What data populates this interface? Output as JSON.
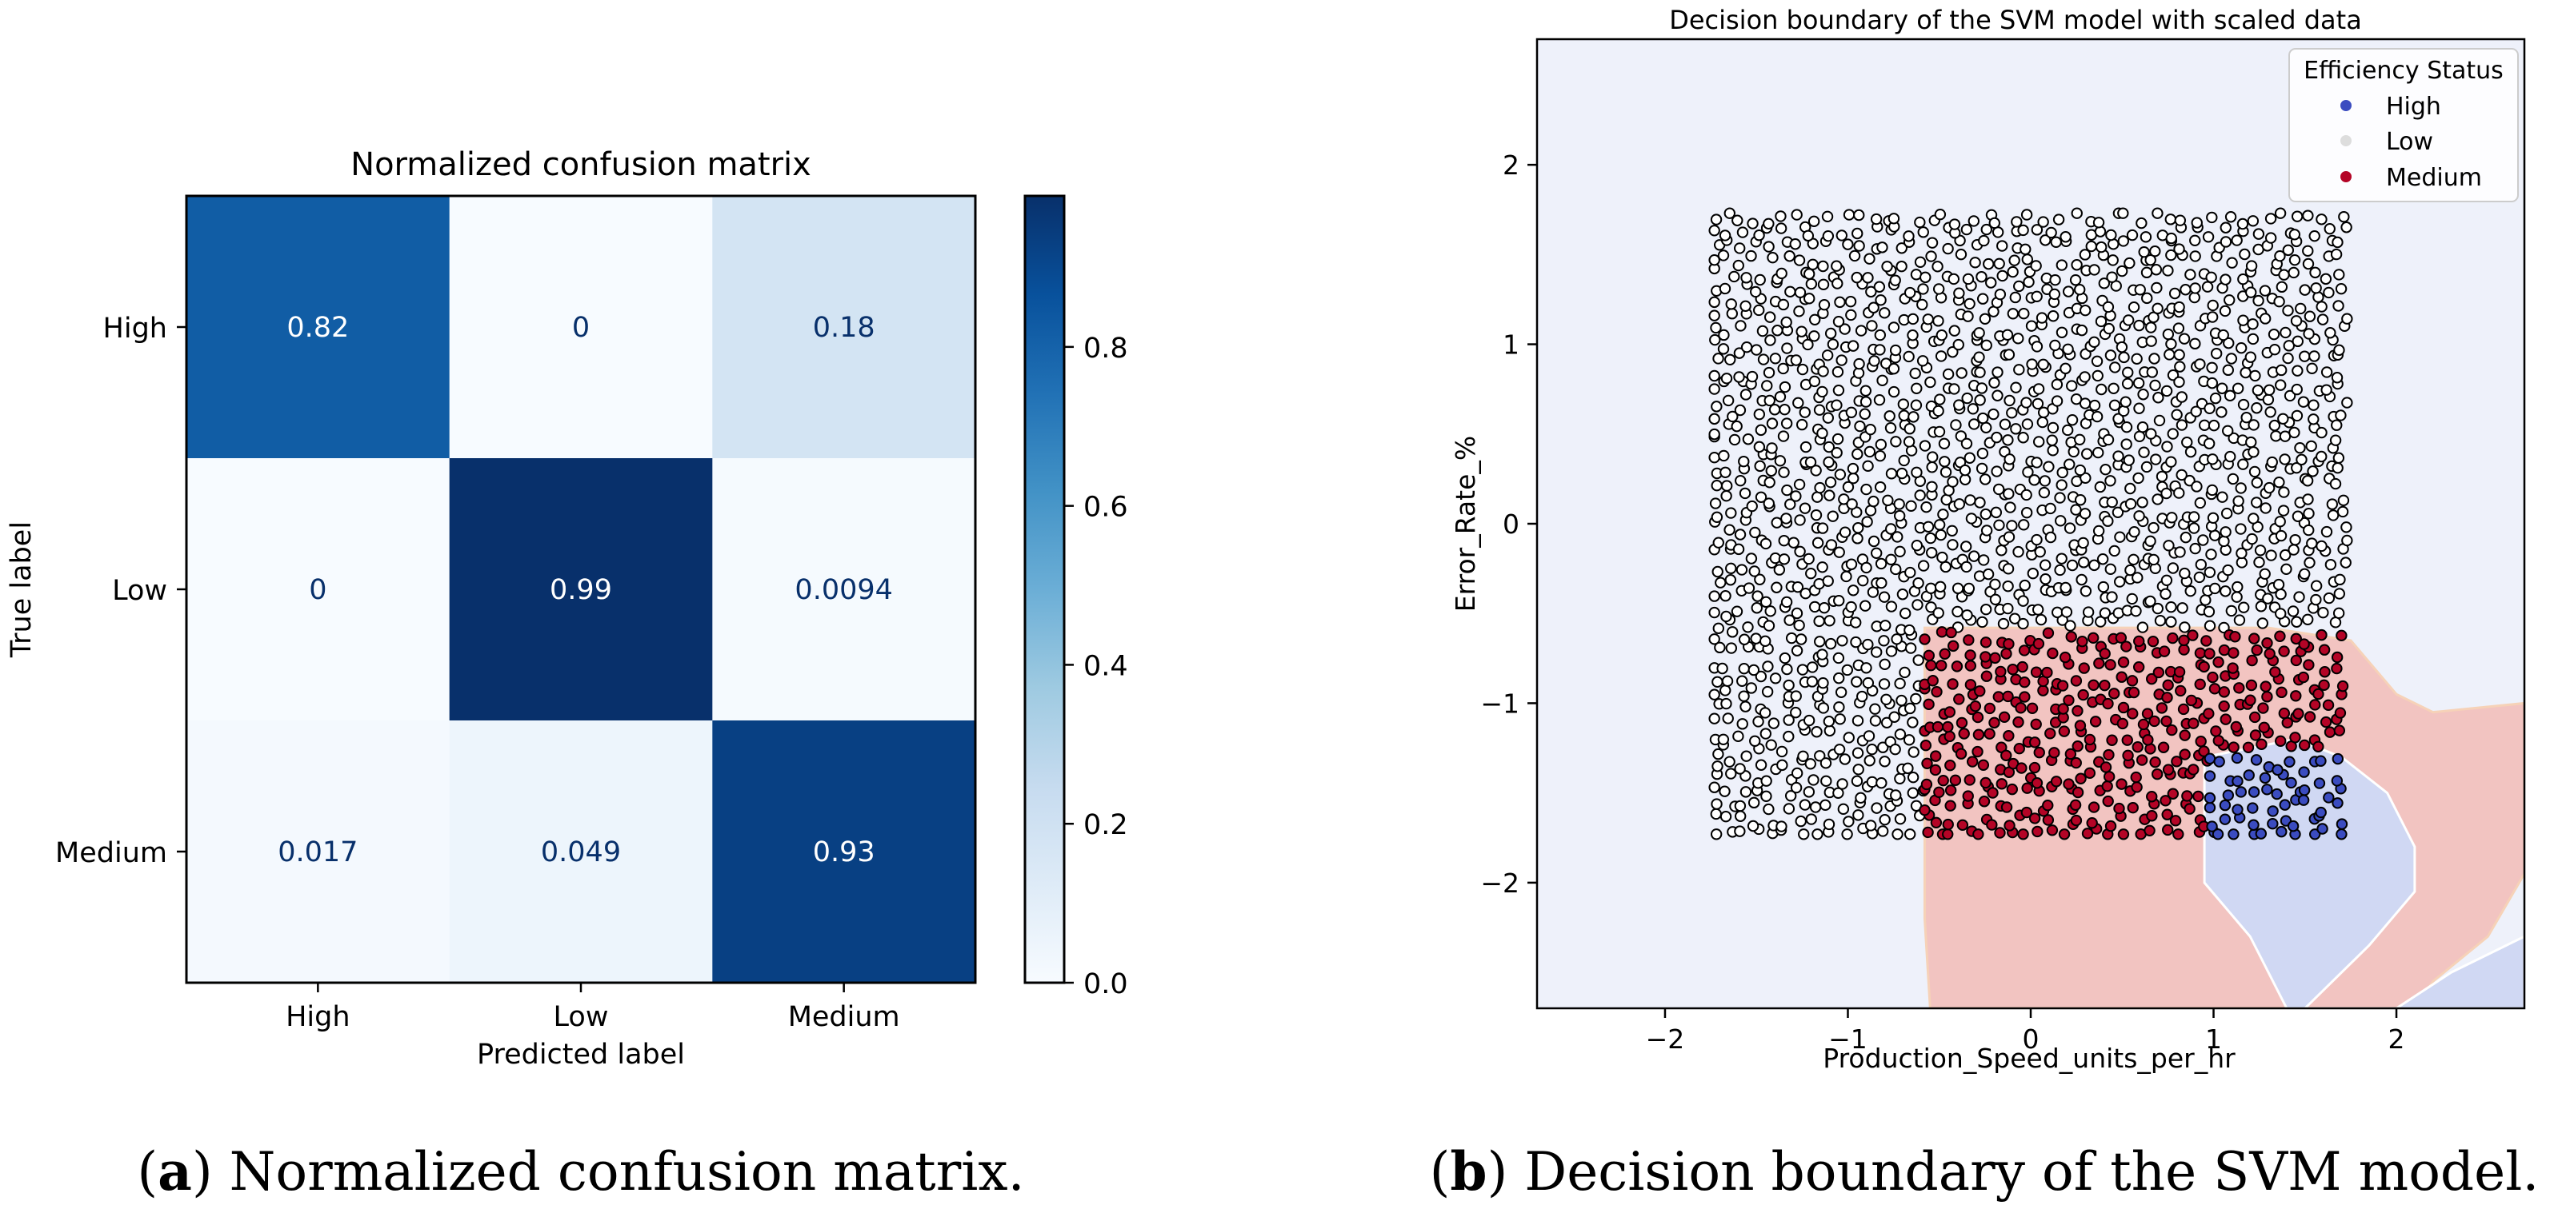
{
  "chart_data": [
    {
      "type": "heatmap",
      "title": "Normalized confusion matrix",
      "xlabel": "Predicted label",
      "ylabel": "True label",
      "x_categories": [
        "High",
        "Low",
        "Medium"
      ],
      "y_categories": [
        "High",
        "Low",
        "Medium"
      ],
      "values": [
        [
          0.82,
          0,
          0.18
        ],
        [
          0,
          0.99,
          0.0094
        ],
        [
          0.017,
          0.049,
          0.93
        ]
      ],
      "value_labels": [
        [
          "0.82",
          "0",
          "0.18"
        ],
        [
          "0",
          "0.99",
          "0.0094"
        ],
        [
          "0.017",
          "0.049",
          "0.93"
        ]
      ],
      "colormap": "Blues",
      "colorbar": {
        "range": [
          0.0,
          0.99
        ],
        "ticks": [
          0.0,
          0.2,
          0.4,
          0.6,
          0.8
        ],
        "tick_labels": [
          "0.0",
          "0.2",
          "0.4",
          "0.6",
          "0.8"
        ]
      },
      "caption": {
        "letter": "a",
        "text": " Normalized confusion matrix."
      }
    },
    {
      "type": "scatter",
      "title": "Decision boundary of the SVM model with scaled data",
      "xlabel": "Production_Speed_units_per_hr",
      "ylabel": "Error_Rate_%",
      "xlim": [
        -2.7,
        2.7
      ],
      "ylim": [
        -2.7,
        2.7
      ],
      "x_ticks": [
        -2,
        -1,
        0,
        1,
        2
      ],
      "x_tick_labels": [
        "−2",
        "−1",
        "0",
        "1",
        "2"
      ],
      "y_ticks": [
        -2,
        -1,
        0,
        1,
        2
      ],
      "y_tick_labels": [
        "−2",
        "−1",
        "0",
        "1",
        "2"
      ],
      "legend": {
        "title": "Efficiency Status",
        "placement": "top-right",
        "entries": [
          {
            "label": "High",
            "color": "#3b4cc0"
          },
          {
            "label": "Low",
            "color": "#dddddd"
          },
          {
            "label": "Medium",
            "color": "#b40426"
          }
        ]
      },
      "series": [
        {
          "name": "Low",
          "color": "#ffffff",
          "region": {
            "x": [
              -1.73,
              1.73
            ],
            "y": [
              -1.73,
              1.73
            ]
          },
          "exclude": {
            "x": [
              -0.58,
              1.73
            ],
            "y": [
              -1.73,
              -0.58
            ]
          }
        },
        {
          "name": "Medium",
          "color": "#b40426",
          "region": {
            "x": [
              -0.58,
              1.73
            ],
            "y": [
              -1.73,
              -0.58
            ]
          },
          "exclude": {
            "x": [
              0.98,
              1.73
            ],
            "y": [
              -1.73,
              -1.27
            ]
          }
        },
        {
          "name": "High",
          "color": "#3b4cc0",
          "region": {
            "x": [
              0.98,
              1.73
            ],
            "y": [
              -1.73,
              -1.27
            ]
          }
        }
      ],
      "decision_regions": [
        {
          "name": "Low",
          "color": "#eef1fa"
        },
        {
          "name": "Medium",
          "color": "#f2c4c1",
          "polygon": [
            [
              -0.58,
              -0.58
            ],
            [
              1.3,
              -0.58
            ],
            [
              1.75,
              -0.65
            ],
            [
              2.0,
              -0.95
            ],
            [
              2.2,
              -1.05
            ],
            [
              2.7,
              -1.0
            ],
            [
              2.7,
              -1.95
            ],
            [
              2.5,
              -2.3
            ],
            [
              2.2,
              -2.55
            ],
            [
              2.1,
              -2.7
            ],
            [
              -0.55,
              -2.7
            ],
            [
              -0.58,
              -2.2
            ]
          ]
        },
        {
          "name": "High",
          "color": "#d0d8f3",
          "polygon": [
            [
              0.95,
              -1.3
            ],
            [
              1.45,
              -1.2
            ],
            [
              1.7,
              -1.3
            ],
            [
              1.95,
              -1.5
            ],
            [
              2.1,
              -1.8
            ],
            [
              2.1,
              -2.05
            ],
            [
              1.85,
              -2.35
            ],
            [
              1.6,
              -2.6
            ],
            [
              1.5,
              -2.7
            ],
            [
              2.0,
              -2.7
            ],
            [
              2.3,
              -2.5
            ],
            [
              2.7,
              -2.3
            ],
            [
              2.7,
              -2.7
            ],
            [
              1.4,
              -2.7
            ],
            [
              1.2,
              -2.3
            ],
            [
              0.95,
              -2.0
            ]
          ]
        }
      ],
      "caption": {
        "letter": "b",
        "text": " Decision boundary of the SVM model."
      }
    }
  ]
}
